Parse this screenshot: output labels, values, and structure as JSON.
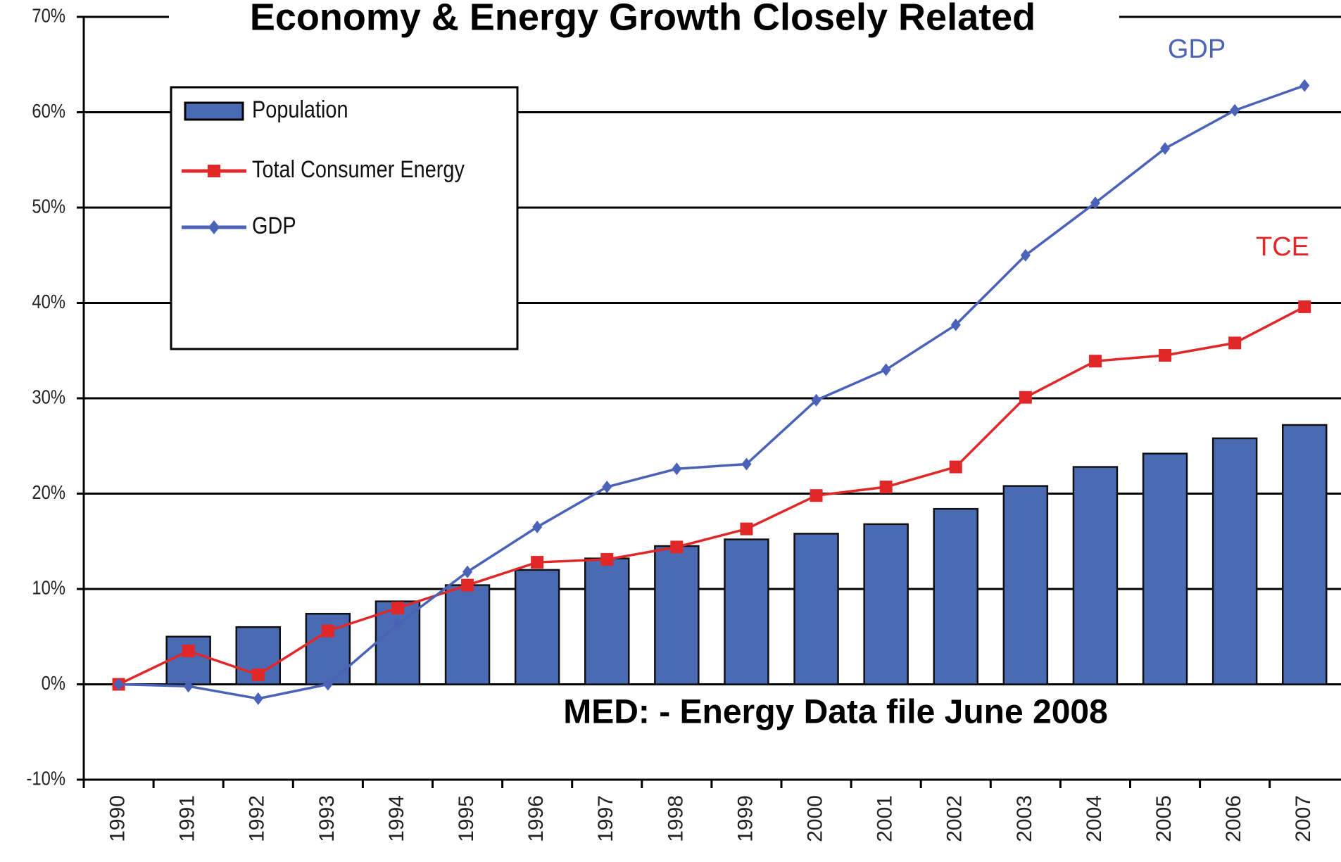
{
  "chart_data": {
    "type": "bar_line",
    "title": "Economy & Energy Growth Closely Related",
    "source": "MED: - Energy Data file June 2008",
    "annotations": [
      {
        "text": "GDP",
        "color": "#4a62b8"
      },
      {
        "text": "TCE",
        "color": "#e02828"
      }
    ],
    "categories": [
      "1990",
      "1991",
      "1992",
      "1993",
      "1994",
      "1995",
      "1996",
      "1997",
      "1998",
      "1999",
      "2000",
      "2001",
      "2002",
      "2003",
      "2004",
      "2005",
      "2006",
      "2007"
    ],
    "series": [
      {
        "name": "Population",
        "kind": "bar",
        "color": "#4a6ab4",
        "values": [
          0,
          5,
          6,
          7.4,
          8.7,
          10.4,
          12,
          13.2,
          14.5,
          15.2,
          15.8,
          16.8,
          18.4,
          20.8,
          22.8,
          24.2,
          25.8,
          27.2
        ]
      },
      {
        "name": "Total Consumer Energy",
        "kind": "line",
        "marker": "square",
        "color": "#e02828",
        "values": [
          0,
          3.5,
          1,
          5.6,
          8,
          10.4,
          12.8,
          13.1,
          14.4,
          16.3,
          19.8,
          20.7,
          22.8,
          30.1,
          33.9,
          34.5,
          35.8,
          39.6
        ]
      },
      {
        "name": "GDP",
        "kind": "line",
        "marker": "diamond",
        "color": "#4a62b8",
        "values": [
          0,
          -0.2,
          -1.5,
          0,
          6.3,
          11.8,
          16.5,
          20.7,
          22.6,
          23.1,
          29.8,
          33,
          37.7,
          45,
          50.5,
          56.2,
          60.2,
          62.8
        ]
      }
    ],
    "ylim": [
      -10,
      70
    ],
    "yticks": [
      {
        "value": -10,
        "label": "-10%"
      },
      {
        "value": 0,
        "label": "0%"
      },
      {
        "value": 10,
        "label": "10%"
      },
      {
        "value": 20,
        "label": "20%"
      },
      {
        "value": 30,
        "label": "30%"
      },
      {
        "value": 40,
        "label": "40%"
      },
      {
        "value": 50,
        "label": "50%"
      },
      {
        "value": 60,
        "label": "60%"
      },
      {
        "value": 70,
        "label": "70%"
      }
    ],
    "grid": true
  }
}
